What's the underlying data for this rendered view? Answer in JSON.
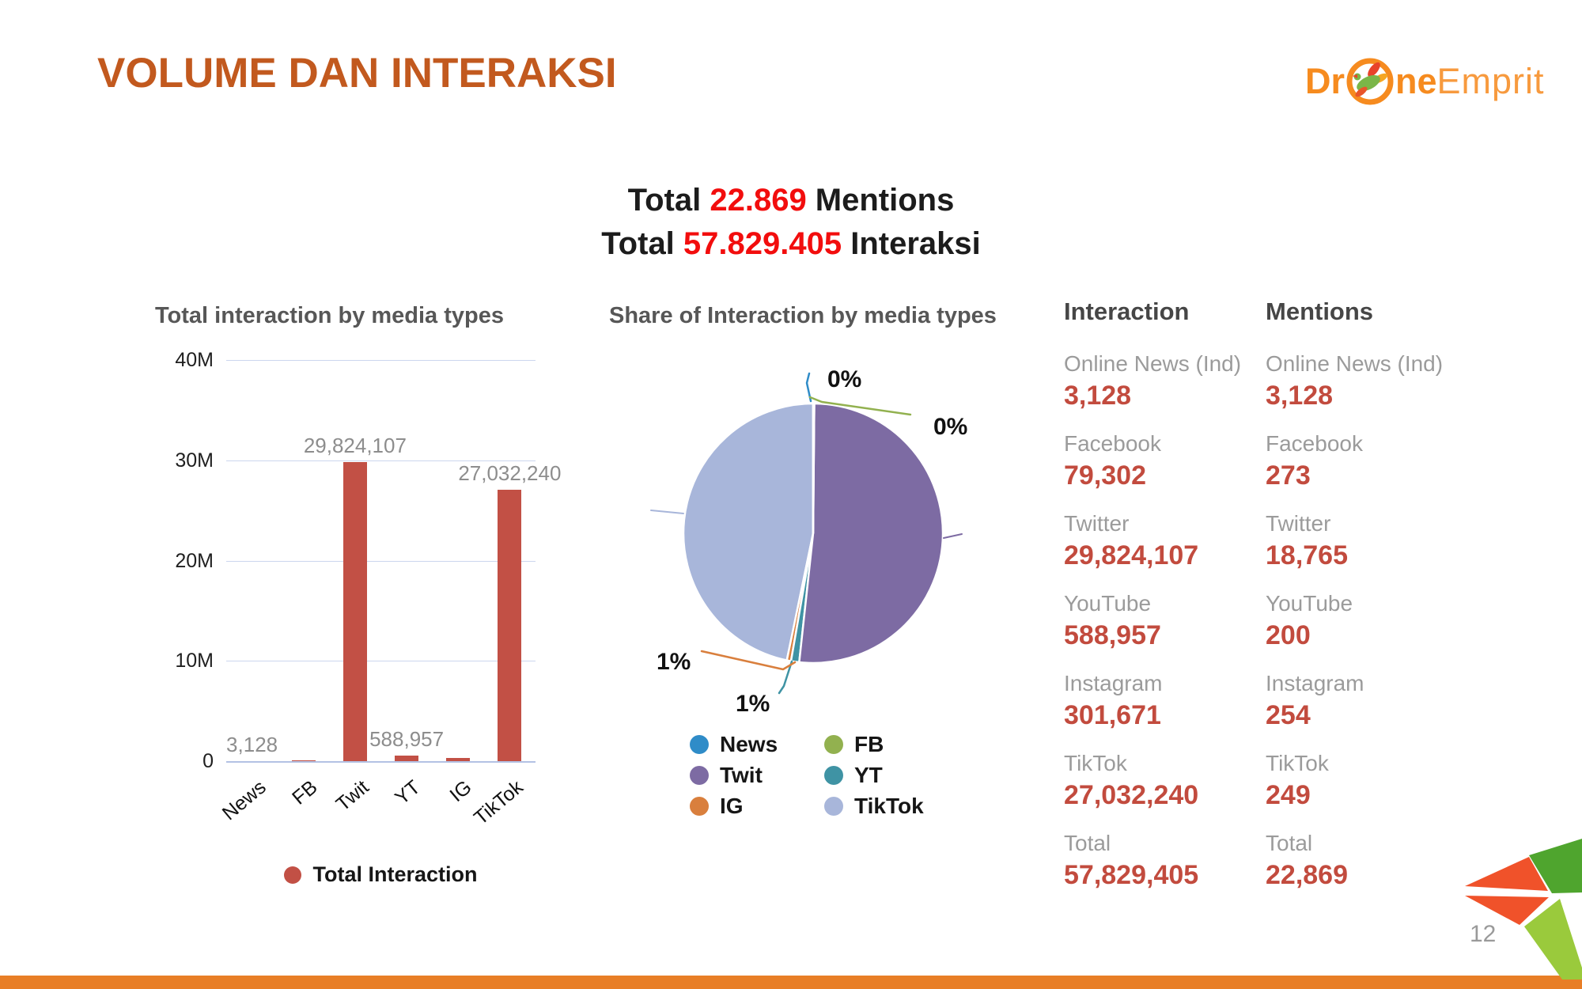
{
  "slide": {
    "title": "VOLUME DAN INTERAKSI",
    "page_number": "12",
    "logo": {
      "prefix": "Dr",
      "mid": "ne",
      "suffix": "Emprit",
      "icon": "droneemprit-bird-icon"
    },
    "summary_lines": [
      {
        "prefix": "Total ",
        "highlight": "22.869",
        "suffix": " Mentions"
      },
      {
        "prefix": "Total ",
        "highlight": "57.829.405",
        "suffix": " Interaksi"
      }
    ]
  },
  "chart_data": [
    {
      "type": "bar",
      "title": "Total interaction by media types",
      "categories": [
        "News",
        "FB",
        "Twit",
        "YT",
        "IG",
        "TikTok"
      ],
      "values": [
        3128,
        79302,
        29824107,
        588957,
        301671,
        27032240
      ],
      "value_labels": [
        "3,128",
        "",
        "29,824,107",
        "588,957",
        "",
        "27,032,240"
      ],
      "xlabel": "",
      "ylabel": "",
      "ylim": [
        0,
        40000000
      ],
      "yticks": [
        {
          "label": "40M",
          "value": 40000000
        },
        {
          "label": "30M",
          "value": 30000000
        },
        {
          "label": "20M",
          "value": 20000000
        },
        {
          "label": "10M",
          "value": 10000000
        },
        {
          "label": "0",
          "value": 0
        }
      ],
      "grid": true,
      "bar_color": "#c25045",
      "legend": [
        {
          "label": "Total Interaction",
          "color": "#c25045"
        }
      ],
      "legend_position": "bottom"
    },
    {
      "type": "pie",
      "title": "Share of Interaction by media types",
      "slices": [
        {
          "name": "News",
          "value": 3128,
          "pct_label": "0%",
          "color": "#2f8cc8"
        },
        {
          "name": "FB",
          "value": 79302,
          "pct_label": "0%",
          "color": "#92b14f"
        },
        {
          "name": "Twit",
          "value": 29824107,
          "pct_label": "",
          "color": "#7d6ba3"
        },
        {
          "name": "YT",
          "value": 588957,
          "pct_label": "1%",
          "color": "#3f93a4"
        },
        {
          "name": "IG",
          "value": 301671,
          "pct_label": "1%",
          "color": "#d97f3d"
        },
        {
          "name": "TikTok",
          "value": 27032240,
          "pct_label": "",
          "color": "#a8b6da"
        }
      ],
      "legend_order": [
        "News",
        "FB",
        "Twit",
        "YT",
        "IG",
        "TikTok"
      ],
      "legend_position": "bottom"
    }
  ],
  "stats": {
    "interaction": {
      "header": "Interaction",
      "rows": [
        {
          "label": "Online News (Ind)",
          "value": "3,128"
        },
        {
          "label": "Facebook",
          "value": "79,302"
        },
        {
          "label": "Twitter",
          "value": "29,824,107"
        },
        {
          "label": "YouTube",
          "value": "588,957"
        },
        {
          "label": "Instagram",
          "value": "301,671"
        },
        {
          "label": "TikTok",
          "value": "27,032,240"
        },
        {
          "label": "Total",
          "value": "57,829,405"
        }
      ]
    },
    "mentions": {
      "header": "Mentions",
      "rows": [
        {
          "label": "Online News (Ind)",
          "value": "3,128"
        },
        {
          "label": "Facebook",
          "value": "273"
        },
        {
          "label": "Twitter",
          "value": "18,765"
        },
        {
          "label": "YouTube",
          "value": "200"
        },
        {
          "label": "Instagram",
          "value": "254"
        },
        {
          "label": "TikTok",
          "value": "249"
        },
        {
          "label": "Total",
          "value": "22,869"
        }
      ]
    }
  },
  "colors": {
    "title_orange": "#c2591e",
    "highlight_red": "#f20d0d",
    "bar_red": "#c25045",
    "value_red": "#c24b3e",
    "label_gray": "#9b9b9b",
    "header_gray": "#464646",
    "grid_blue": "#ccd6ee",
    "logo_orange": "#f68b1f",
    "bottom_bar_orange": "#e87e26",
    "pinwheel_dark_green": "#4fa52e",
    "pinwheel_light_green": "#9aca3c",
    "pinwheel_orange_red": "#f0522a"
  }
}
